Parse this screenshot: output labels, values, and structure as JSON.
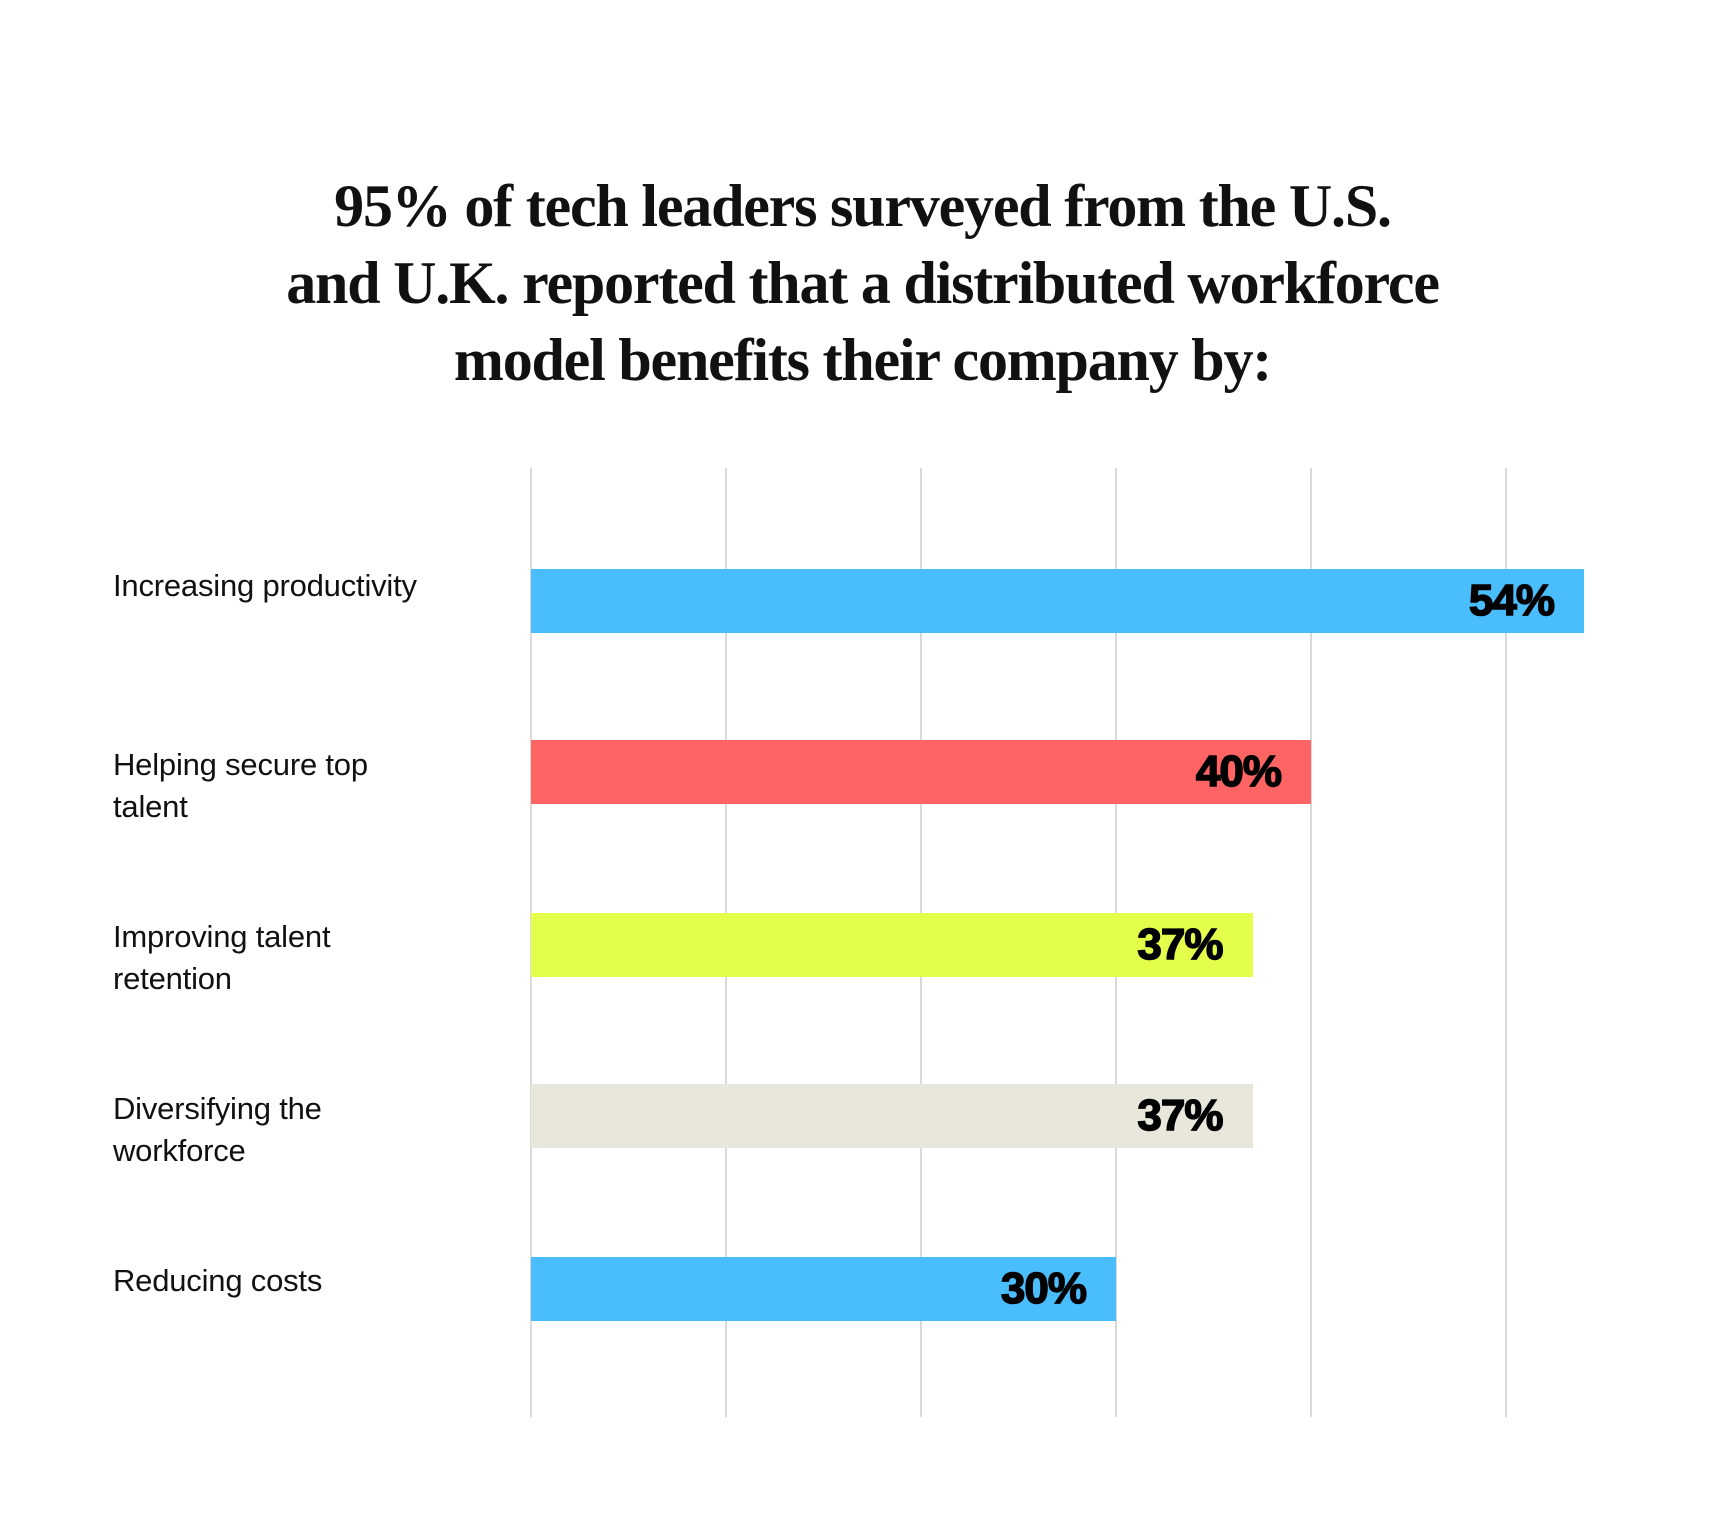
{
  "header": {
    "title_lines": [
      "95% of tech leaders surveyed from the U.S.",
      "and U.K. reported that a distributed workforce",
      "model benefits their company by:"
    ]
  },
  "colors": {
    "blue": "#4ABEFD",
    "red": "#FF6464",
    "yellow": "#E4FF4B",
    "beige": "#E9E7DC",
    "gridline": "#D9D9D9"
  },
  "chart_data": {
    "type": "bar",
    "orientation": "horizontal",
    "title": "95% of tech leaders surveyed from the U.S. and U.K. reported that a distributed workforce model benefits their company by:",
    "categories": [
      "Increasing productivity",
      "Helping secure top talent",
      "Improving talent retention",
      "Diversifying the workforce",
      "Reducing costs"
    ],
    "values": [
      54,
      40,
      37,
      37,
      30
    ],
    "value_labels": [
      "54%",
      "40%",
      "37%",
      "37%",
      "30%"
    ],
    "bar_colors": [
      "#4ABEFD",
      "#FF6464",
      "#E4FF4B",
      "#E9E7DC",
      "#4ABEFD"
    ],
    "xlabel": "",
    "ylabel": "",
    "xlim": [
      0,
      60
    ],
    "grid": true,
    "gridline_step": 10,
    "legend": null
  },
  "rows": [
    {
      "label_lines": [
        "Increasing productivity"
      ],
      "value": 54,
      "value_label": "54%",
      "color": "#4ABEFD"
    },
    {
      "label_lines": [
        "Helping secure top",
        "talent"
      ],
      "value": 40,
      "value_label": "40%",
      "color": "#FF6464"
    },
    {
      "label_lines": [
        "Improving talent",
        "retention"
      ],
      "value": 37,
      "value_label": "37%",
      "color": "#E4FF4B"
    },
    {
      "label_lines": [
        "Diversifying the",
        "workforce"
      ],
      "value": 37,
      "value_label": "37%",
      "color": "#E9E7DC"
    },
    {
      "label_lines": [
        "Reducing costs"
      ],
      "value": 30,
      "value_label": "30%",
      "color": "#4ABEFD"
    }
  ]
}
